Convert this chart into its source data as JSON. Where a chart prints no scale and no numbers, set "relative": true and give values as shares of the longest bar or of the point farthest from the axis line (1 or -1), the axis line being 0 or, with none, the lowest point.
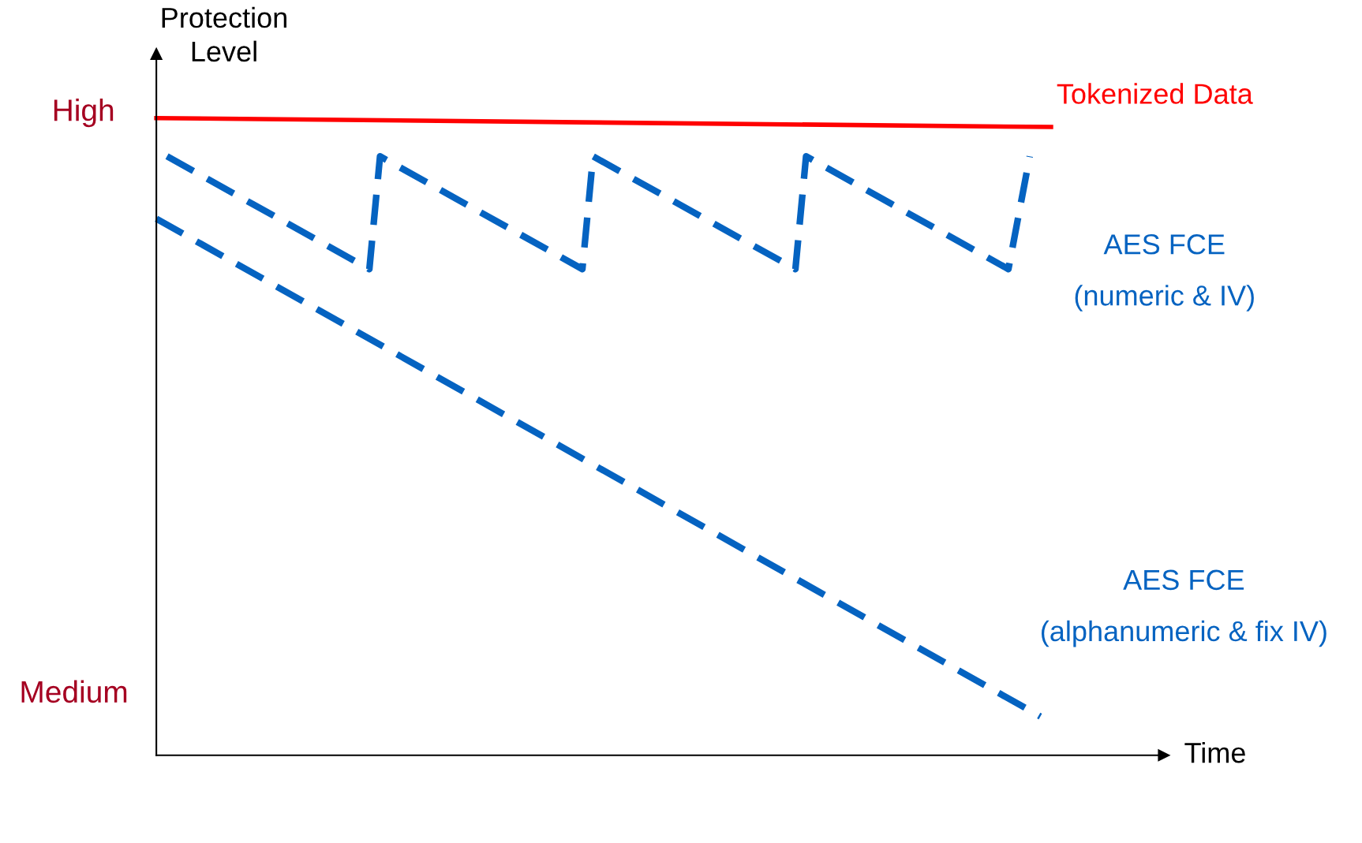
{
  "chart_data": {
    "type": "line",
    "ylabel": "Protection\nLevel",
    "xlabel": "Time",
    "relative": true,
    "categories": [
      null,
      null,
      null,
      null,
      null,
      null,
      null,
      null,
      null,
      null,
      null,
      null,
      null,
      null,
      null,
      null,
      null,
      null,
      null,
      null,
      null,
      null,
      null,
      null,
      null,
      null,
      null,
      null,
      null,
      null,
      null,
      null,
      null,
      null,
      null,
      null,
      null,
      null,
      null,
      null,
      null,
      null,
      null,
      null,
      null,
      null,
      null,
      null,
      null,
      null,
      null,
      null,
      null,
      null,
      null,
      null,
      null,
      null,
      null,
      null,
      null,
      null,
      null,
      null,
      null,
      null,
      null,
      null,
      null,
      null,
      null,
      null,
      null,
      null,
      null,
      null,
      null,
      null,
      null,
      null,
      null,
      null,
      null,
      null,
      null
    ],
    "annotations": [
      "High",
      "Medium"
    ],
    "grid": false,
    "legend": false,
    "series": [
      {
        "name": "Tokenized Data",
        "color": "#ff0000",
        "line_style": "solid",
        "values": [
          1.0,
          null,
          null,
          null,
          null,
          null,
          null,
          null,
          null,
          null,
          null,
          null,
          null,
          null,
          null,
          null,
          null,
          null,
          null,
          null,
          null,
          null,
          null,
          null,
          null,
          null,
          null,
          null,
          null,
          null,
          null,
          null,
          null,
          null,
          null,
          null,
          null,
          null,
          null,
          null,
          null,
          null,
          null,
          null,
          null,
          null,
          null,
          null,
          null,
          null,
          null,
          null,
          null,
          null,
          null,
          null,
          null,
          null,
          null,
          null,
          null,
          null,
          null,
          null,
          null,
          null,
          null,
          null,
          null,
          null,
          null,
          null,
          null,
          null,
          null,
          null,
          null,
          null,
          null,
          null,
          null,
          null,
          null,
          null,
          0.986
        ]
      },
      {
        "name": "AES FCE\n(numeric & IV)",
        "color": "#0563c1",
        "line_style": "dashed",
        "values": [
          null,
          0.94,
          null,
          null,
          null,
          null,
          null,
          null,
          null,
          null,
          null,
          null,
          null,
          null,
          null,
          null,
          null,
          null,
          null,
          null,
          0.763,
          0.94,
          null,
          null,
          null,
          null,
          null,
          null,
          null,
          null,
          null,
          null,
          null,
          null,
          null,
          null,
          null,
          null,
          null,
          null,
          0.763,
          0.94,
          null,
          null,
          null,
          null,
          null,
          null,
          null,
          null,
          null,
          null,
          null,
          null,
          null,
          null,
          null,
          null,
          null,
          null,
          0.763,
          0.94,
          null,
          null,
          null,
          null,
          null,
          null,
          null,
          null,
          null,
          null,
          null,
          null,
          null,
          null,
          null,
          null,
          null,
          null,
          0.763,
          null,
          0.94,
          null,
          null
        ]
      },
      {
        "name": "AES FCE\n(alphanumeric & fix IV)",
        "color": "#0563c1",
        "line_style": "dashed",
        "values": [
          0.842,
          null,
          null,
          null,
          null,
          null,
          null,
          null,
          null,
          null,
          null,
          null,
          null,
          null,
          null,
          null,
          null,
          null,
          null,
          null,
          null,
          null,
          null,
          null,
          null,
          null,
          null,
          null,
          null,
          null,
          null,
          null,
          null,
          null,
          null,
          null,
          null,
          null,
          null,
          null,
          null,
          null,
          null,
          null,
          null,
          null,
          null,
          null,
          null,
          null,
          null,
          null,
          null,
          null,
          null,
          null,
          null,
          null,
          null,
          null,
          null,
          null,
          null,
          null,
          null,
          null,
          null,
          null,
          null,
          null,
          null,
          null,
          null,
          null,
          null,
          null,
          null,
          null,
          null,
          null,
          null,
          null,
          null,
          0.061,
          null
        ]
      }
    ]
  }
}
